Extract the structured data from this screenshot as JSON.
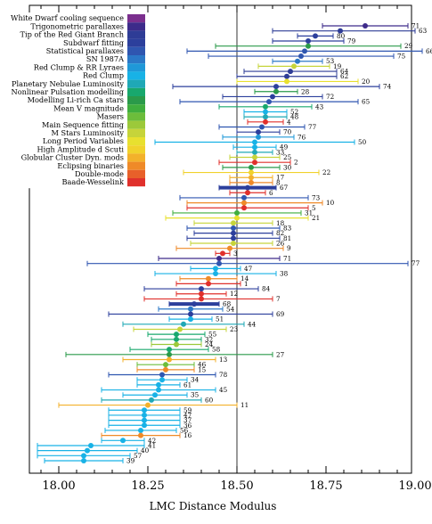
{
  "chart_data": {
    "type": "scatter",
    "xlabel": "LMC Distance Modulus",
    "xlim": [
      17.9,
      19.1
    ],
    "x_ticks": [
      "18.00",
      "18.25",
      "18.50",
      "18.75",
      "19.00"
    ],
    "x_tick_values": [
      18.0,
      18.25,
      18.5,
      18.75,
      19.0
    ],
    "reference_line": 18.5,
    "categories": [
      {
        "name": "White Dwarf cooling sequence",
        "color": "#7b2f8e"
      },
      {
        "name": "Trigonometric parallaxes",
        "color": "#3d2b8a"
      },
      {
        "name": "Tip of the Red Giant Branch",
        "color": "#2e3c96"
      },
      {
        "name": "Subdwarf fitting",
        "color": "#2c3f9c"
      },
      {
        "name": "Statistical parallaxes",
        "color": "#2f56b0"
      },
      {
        "name": "SN 1987A",
        "color": "#2b78c7"
      },
      {
        "name": "Red Clump & RR Lyraes",
        "color": "#1f98d8"
      },
      {
        "name": "Red Clump",
        "color": "#18b2e6"
      },
      {
        "name": "Planetary Nebulae Luminosity",
        "color": "#1fa8b6"
      },
      {
        "name": "Nonlinear Pulsation modelling",
        "color": "#18a86d"
      },
      {
        "name": "Modelling Li-rich Ca stars",
        "color": "#2a9a4a"
      },
      {
        "name": "Mean V magnitude",
        "color": "#3fae3e"
      },
      {
        "name": "Masers",
        "color": "#6cbd3b"
      },
      {
        "name": "Main Sequence fitting",
        "color": "#9cc93a"
      },
      {
        "name": "M Stars Luminosity",
        "color": "#c6d43a"
      },
      {
        "name": "Long Period Variables",
        "color": "#e8e02f"
      },
      {
        "name": "High Amplitude d Scuti",
        "color": "#f1d22c"
      },
      {
        "name": "Globular Cluster Dyn. mods",
        "color": "#f3b12b"
      },
      {
        "name": "Eclipsing binaries",
        "color": "#ef8a28"
      },
      {
        "name": "Double-mode",
        "color": "#e8602a"
      },
      {
        "name": "Baade-Wesselink",
        "color": "#e0302c"
      }
    ],
    "points": [
      {
        "label": "71",
        "x": 18.86,
        "lo": 18.74,
        "hi": 18.98,
        "cat": 1
      },
      {
        "label": "63",
        "x": 18.79,
        "lo": 18.6,
        "hi": 19.0,
        "cat": 2
      },
      {
        "label": "80",
        "x": 18.72,
        "lo": 18.67,
        "hi": 18.77,
        "cat": 3
      },
      {
        "label": "79",
        "x": 18.7,
        "lo": 18.6,
        "hi": 18.8,
        "cat": 3
      },
      {
        "label": "29",
        "x": 18.7,
        "lo": 18.44,
        "hi": 18.96,
        "cat": 10
      },
      {
        "label": "66",
        "x": 18.69,
        "lo": 18.36,
        "hi": 19.02,
        "cat": 4
      },
      {
        "label": "75",
        "x": 18.68,
        "lo": 18.42,
        "hi": 18.94,
        "cat": 4
      },
      {
        "label": "53",
        "x": 18.67,
        "lo": 18.6,
        "hi": 18.74,
        "cat": 5
      },
      {
        "label": "19",
        "x": 18.66,
        "lo": 18.56,
        "hi": 18.76,
        "cat": 14
      },
      {
        "label": "64",
        "x": 18.65,
        "lo": 18.52,
        "hi": 18.78,
        "cat": 2
      },
      {
        "label": "62",
        "x": 18.64,
        "lo": 18.5,
        "hi": 18.78,
        "cat": 2
      },
      {
        "label": "20",
        "x": 18.64,
        "lo": 18.5,
        "hi": 18.84,
        "cat": 15
      },
      {
        "label": "74",
        "x": 18.61,
        "lo": 18.32,
        "hi": 18.9,
        "cat": 3
      },
      {
        "label": "28",
        "x": 18.61,
        "lo": 18.55,
        "hi": 18.67,
        "cat": 10
      },
      {
        "label": "72",
        "x": 18.6,
        "lo": 18.46,
        "hi": 18.74,
        "cat": 3
      },
      {
        "label": "65",
        "x": 18.59,
        "lo": 18.34,
        "hi": 18.84,
        "cat": 4
      },
      {
        "label": "43",
        "x": 18.58,
        "lo": 18.45,
        "hi": 18.71,
        "cat": 9
      },
      {
        "label": "52",
        "x": 18.58,
        "lo": 18.52,
        "hi": 18.64,
        "cat": 7
      },
      {
        "label": "48",
        "x": 18.58,
        "lo": 18.52,
        "hi": 18.64,
        "cat": 8
      },
      {
        "label": "4",
        "x": 18.58,
        "lo": 18.53,
        "hi": 18.63,
        "cat": 20
      },
      {
        "label": "77",
        "x": 18.57,
        "lo": 18.45,
        "hi": 18.69,
        "cat": 4
      },
      {
        "label": "70",
        "x": 18.56,
        "lo": 18.5,
        "hi": 18.62,
        "cat": 3
      },
      {
        "label": "76",
        "x": 18.56,
        "lo": 18.46,
        "hi": 18.66,
        "cat": 6
      },
      {
        "label": "50",
        "x": 18.55,
        "lo": 18.27,
        "hi": 18.83,
        "cat": 7
      },
      {
        "label": "49",
        "x": 18.55,
        "lo": 18.49,
        "hi": 18.61,
        "cat": 7
      },
      {
        "label": "33",
        "x": 18.55,
        "lo": 18.5,
        "hi": 18.6,
        "cat": 8
      },
      {
        "label": "25",
        "x": 18.55,
        "lo": 18.48,
        "hi": 18.62,
        "cat": 14
      },
      {
        "label": "2",
        "x": 18.55,
        "lo": 18.45,
        "hi": 18.65,
        "cat": 20
      },
      {
        "label": "30",
        "x": 18.54,
        "lo": 18.46,
        "hi": 18.62,
        "cat": 10
      },
      {
        "label": "22",
        "x": 18.54,
        "lo": 18.35,
        "hi": 18.73,
        "cat": 16
      },
      {
        "label": "17",
        "x": 18.54,
        "lo": 18.48,
        "hi": 18.6,
        "cat": 17
      },
      {
        "label": "8",
        "x": 18.54,
        "lo": 18.48,
        "hi": 18.6,
        "cat": 18
      },
      {
        "label": "67",
        "x": 18.53,
        "lo": 18.45,
        "hi": 18.61,
        "cat": 3,
        "thick": true
      },
      {
        "label": "6",
        "x": 18.53,
        "lo": 18.48,
        "hi": 18.58,
        "cat": 20
      },
      {
        "label": "73",
        "x": 18.52,
        "lo": 18.34,
        "hi": 18.7,
        "cat": 4
      },
      {
        "label": "10",
        "x": 18.52,
        "lo": 18.36,
        "hi": 18.74,
        "cat": 18
      },
      {
        "label": "5",
        "x": 18.52,
        "lo": 18.36,
        "hi": 18.7,
        "cat": 20
      },
      {
        "label": "31",
        "x": 18.5,
        "lo": 18.32,
        "hi": 18.68,
        "cat": 11
      },
      {
        "label": "21",
        "x": 18.5,
        "lo": 18.3,
        "hi": 18.7,
        "cat": 15
      },
      {
        "label": "18",
        "x": 18.49,
        "lo": 18.38,
        "hi": 18.6,
        "cat": 14
      },
      {
        "label": "83",
        "x": 18.49,
        "lo": 18.36,
        "hi": 18.62,
        "cat": 4
      },
      {
        "label": "82",
        "x": 18.49,
        "lo": 18.38,
        "hi": 18.6,
        "cat": 3
      },
      {
        "label": "81",
        "x": 18.49,
        "lo": 18.36,
        "hi": 18.62,
        "cat": 3
      },
      {
        "label": "26",
        "x": 18.49,
        "lo": 18.37,
        "hi": 18.6,
        "cat": 14
      },
      {
        "label": "9",
        "x": 18.48,
        "lo": 18.33,
        "hi": 18.63,
        "cat": 18
      },
      {
        "label": "3",
        "x": 18.46,
        "lo": 18.44,
        "hi": 18.48,
        "cat": 20
      },
      {
        "label": "71",
        "x": 18.45,
        "lo": 18.28,
        "hi": 18.62,
        "cat": 1
      },
      {
        "label": "77",
        "x": 18.45,
        "lo": 18.08,
        "hi": 18.98,
        "cat": 4
      },
      {
        "label": "47",
        "x": 18.44,
        "lo": 18.37,
        "hi": 18.51,
        "cat": 7
      },
      {
        "label": "38",
        "x": 18.44,
        "lo": 18.27,
        "hi": 18.61,
        "cat": 7
      },
      {
        "label": "14",
        "x": 18.42,
        "lo": 18.34,
        "hi": 18.5,
        "cat": 18
      },
      {
        "label": "1",
        "x": 18.42,
        "lo": 18.33,
        "hi": 18.51,
        "cat": 20
      },
      {
        "label": "84",
        "x": 18.4,
        "lo": 18.24,
        "hi": 18.56,
        "cat": 3
      },
      {
        "label": "12",
        "x": 18.4,
        "lo": 18.33,
        "hi": 18.47,
        "cat": 20
      },
      {
        "label": "7",
        "x": 18.4,
        "lo": 18.24,
        "hi": 18.6,
        "cat": 20
      },
      {
        "label": "68",
        "x": 18.38,
        "lo": 18.31,
        "hi": 18.45,
        "cat": 3,
        "thick": true
      },
      {
        "label": "54",
        "x": 18.37,
        "lo": 18.28,
        "hi": 18.46,
        "cat": 5
      },
      {
        "label": "69",
        "x": 18.37,
        "lo": 18.14,
        "hi": 18.6,
        "cat": 3
      },
      {
        "label": "51",
        "x": 18.37,
        "lo": 18.31,
        "hi": 18.43,
        "cat": 7
      },
      {
        "label": "44",
        "x": 18.35,
        "lo": 18.18,
        "hi": 18.52,
        "cat": 8
      },
      {
        "label": "23",
        "x": 18.34,
        "lo": 18.21,
        "hi": 18.47,
        "cat": 14
      },
      {
        "label": "55",
        "x": 18.33,
        "lo": 18.25,
        "hi": 18.41,
        "cat": 9
      },
      {
        "label": "32",
        "x": 18.33,
        "lo": 18.26,
        "hi": 18.4,
        "cat": 9
      },
      {
        "label": "24",
        "x": 18.33,
        "lo": 18.26,
        "hi": 18.4,
        "cat": 13
      },
      {
        "label": "58",
        "x": 18.31,
        "lo": 18.2,
        "hi": 18.42,
        "cat": 9
      },
      {
        "label": "27",
        "x": 18.31,
        "lo": 18.02,
        "hi": 18.6,
        "cat": 10
      },
      {
        "label": "13",
        "x": 18.31,
        "lo": 18.18,
        "hi": 18.44,
        "cat": 17
      },
      {
        "label": "46",
        "x": 18.3,
        "lo": 18.22,
        "hi": 18.38,
        "cat": 12
      },
      {
        "label": "15",
        "x": 18.3,
        "lo": 18.22,
        "hi": 18.38,
        "cat": 18
      },
      {
        "label": "78",
        "x": 18.29,
        "lo": 18.14,
        "hi": 18.44,
        "cat": 4
      },
      {
        "label": "34",
        "x": 18.29,
        "lo": 18.22,
        "hi": 18.36,
        "cat": 7
      },
      {
        "label": "61",
        "x": 18.28,
        "lo": 18.22,
        "hi": 18.34,
        "cat": 7
      },
      {
        "label": "45",
        "x": 18.28,
        "lo": 18.12,
        "hi": 18.44,
        "cat": 7
      },
      {
        "label": "35",
        "x": 18.27,
        "lo": 18.18,
        "hi": 18.36,
        "cat": 7
      },
      {
        "label": "60",
        "x": 18.26,
        "lo": 18.12,
        "hi": 18.4,
        "cat": 8
      },
      {
        "label": "11",
        "x": 18.25,
        "lo": 18.0,
        "hi": 18.5,
        "cat": 17
      },
      {
        "label": "59",
        "x": 18.24,
        "lo": 18.14,
        "hi": 18.34,
        "cat": 7
      },
      {
        "label": "47",
        "x": 18.24,
        "lo": 18.14,
        "hi": 18.34,
        "cat": 7
      },
      {
        "label": "37",
        "x": 18.24,
        "lo": 18.14,
        "hi": 18.34,
        "cat": 7
      },
      {
        "label": "36",
        "x": 18.24,
        "lo": 18.14,
        "hi": 18.34,
        "cat": 7
      },
      {
        "label": "56",
        "x": 18.23,
        "lo": 18.13,
        "hi": 18.33,
        "cat": 7
      },
      {
        "label": "16",
        "x": 18.23,
        "lo": 18.12,
        "hi": 18.34,
        "cat": 18
      },
      {
        "label": "42",
        "x": 18.18,
        "lo": 18.12,
        "hi": 18.24,
        "cat": 7
      },
      {
        "label": "41",
        "x": 18.09,
        "lo": 17.94,
        "hi": 18.24,
        "cat": 7
      },
      {
        "label": "40",
        "x": 18.08,
        "lo": 17.94,
        "hi": 18.22,
        "cat": 7
      },
      {
        "label": "57",
        "x": 18.07,
        "lo": 17.94,
        "hi": 18.2,
        "cat": 7
      },
      {
        "label": "39",
        "x": 18.07,
        "lo": 17.96,
        "hi": 18.18,
        "cat": 7
      }
    ]
  }
}
